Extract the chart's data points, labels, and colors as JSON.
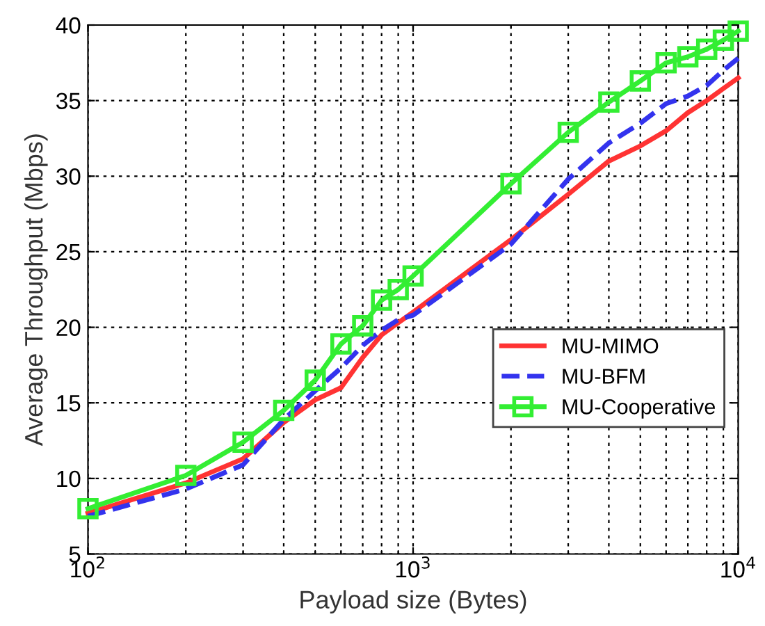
{
  "chart_data": {
    "type": "line",
    "xlabel": "Payload size (Bytes)",
    "ylabel": "Average Throughput (Mbps)",
    "x": [
      100,
      200,
      300,
      400,
      500,
      600,
      700,
      800,
      900,
      1000,
      2000,
      3000,
      4000,
      5000,
      6000,
      7000,
      8000,
      9000,
      10000
    ],
    "series": [
      {
        "name": "MU-MIMO",
        "color": "#ff3333",
        "line_style": "solid",
        "marker": "none",
        "values": [
          7.7,
          9.7,
          11.3,
          13.7,
          15.2,
          16.0,
          18.0,
          19.5,
          20.3,
          21.0,
          25.8,
          28.8,
          31.0,
          32.0,
          33.0,
          34.2,
          35.0,
          35.8,
          36.5
        ]
      },
      {
        "name": "MU-BFM",
        "color": "#3333ee",
        "line_style": "dashed",
        "marker": "none",
        "values": [
          7.5,
          9.3,
          10.9,
          13.9,
          15.8,
          17.3,
          18.8,
          19.8,
          20.5,
          20.8,
          25.5,
          29.8,
          32.2,
          33.5,
          34.8,
          35.3,
          36.0,
          37.0,
          37.8
        ]
      },
      {
        "name": "MU-Cooperative",
        "color": "#33ee33",
        "line_style": "solid",
        "marker": "square",
        "values": [
          8.0,
          10.2,
          12.4,
          14.5,
          16.5,
          18.9,
          20.1,
          21.8,
          22.5,
          23.4,
          29.5,
          32.9,
          34.9,
          36.3,
          37.5,
          37.9,
          38.4,
          39.0,
          39.6
        ]
      }
    ],
    "log": "x",
    "xlim": [
      100,
      10000
    ],
    "xticks": [
      {
        "value": 100,
        "label": "10$^{2}$"
      },
      {
        "value": 1000,
        "label": "10$^{3}$"
      },
      {
        "value": 10000,
        "label": "10$^{4}$"
      }
    ],
    "ylim": [
      5,
      40
    ],
    "yticks": [
      5,
      10,
      15,
      20,
      25,
      30,
      35,
      40
    ],
    "grid": true,
    "legend": "lower right"
  }
}
